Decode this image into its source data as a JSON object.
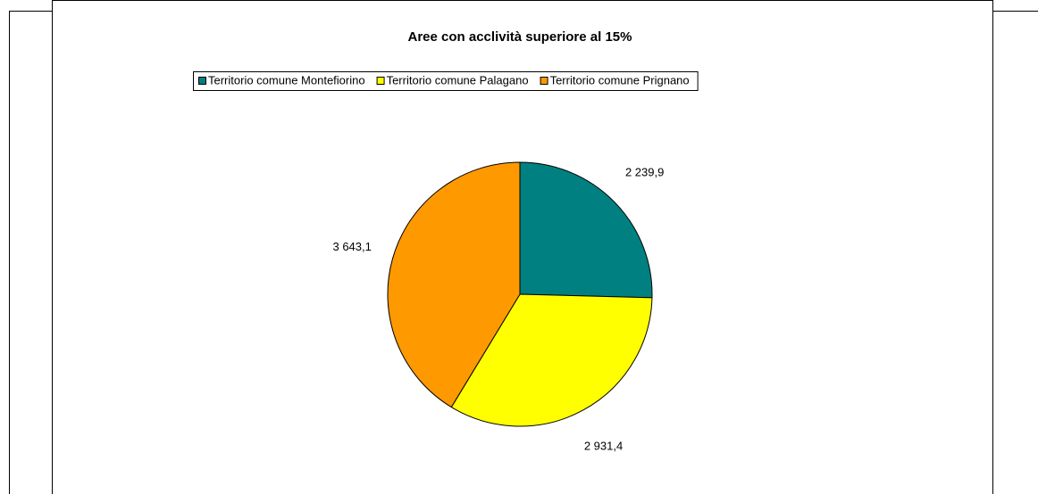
{
  "chart_data": {
    "type": "pie",
    "title": "Aree con acclività superiore al 15%",
    "categories": [
      "Territorio comune Montefiorino",
      "Territorio comune Palagano",
      "Territorio comune Prignano"
    ],
    "values": [
      2239.9,
      2931.4,
      3643.1
    ],
    "value_labels": [
      "2 239,9",
      "2 931,4",
      "3 643,1"
    ],
    "colors": [
      "#008080",
      "#ffff00",
      "#ff9900"
    ],
    "legend": "top"
  }
}
